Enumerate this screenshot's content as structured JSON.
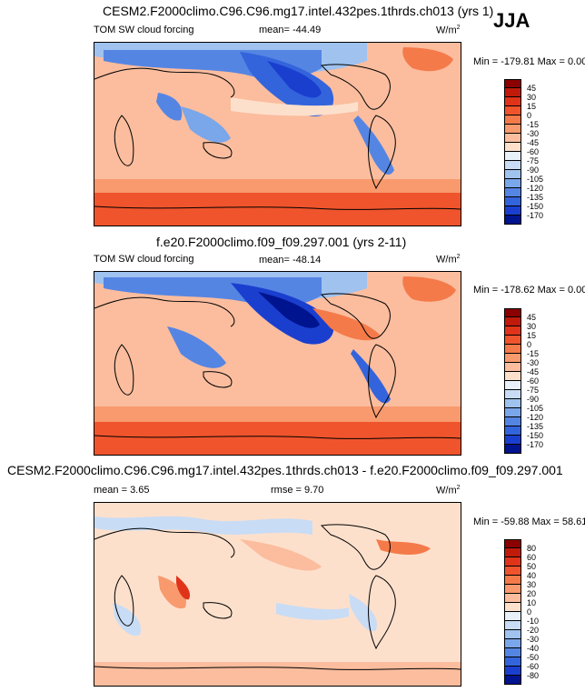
{
  "season": "JJA",
  "panels": [
    {
      "title": "CESM2.F2000climo.C96.C96.mg17.intel.432pes.1thrds.ch013 (yrs 1)",
      "field_label": "TOM SW cloud forcing",
      "mean_label": "mean=",
      "mean_value": "-44.49",
      "rmse_label": "",
      "rmse_value": "",
      "units": "W/m",
      "units_exp": "2",
      "min_max": "Min = -179.81 Max =    0.00",
      "colorbar": {
        "labels": [
          "45",
          "30",
          "15",
          "0",
          "-15",
          "-30",
          "-45",
          "-60",
          "-75",
          "-90",
          "-105",
          "-120",
          "-135",
          "-150",
          "-170"
        ],
        "colors": [
          "#8b0000",
          "#c01a0a",
          "#e0341a",
          "#f0542c",
          "#f57a4a",
          "#f89a6e",
          "#fbbd9e",
          "#fde0cc",
          "#e8f0fa",
          "#c8dcf5",
          "#9fc2ef",
          "#7aa6ea",
          "#5585e3",
          "#3464dc",
          "#1a3fcf",
          "#00148f"
        ]
      }
    },
    {
      "title": "f.e20.F2000climo.f09_f09.297.001 (yrs 2-11)",
      "field_label": "TOM SW cloud forcing",
      "mean_label": "mean=",
      "mean_value": "-48.14",
      "rmse_label": "",
      "rmse_value": "",
      "units": "W/m",
      "units_exp": "2",
      "min_max": "Min = -178.62 Max =    0.00",
      "colorbar": {
        "labels": [
          "45",
          "30",
          "15",
          "0",
          "-15",
          "-30",
          "-45",
          "-60",
          "-75",
          "-90",
          "-105",
          "-120",
          "-135",
          "-150",
          "-170"
        ],
        "colors": [
          "#8b0000",
          "#c01a0a",
          "#e0341a",
          "#f0542c",
          "#f57a4a",
          "#f89a6e",
          "#fbbd9e",
          "#fde0cc",
          "#e8f0fa",
          "#c8dcf5",
          "#9fc2ef",
          "#7aa6ea",
          "#5585e3",
          "#3464dc",
          "#1a3fcf",
          "#00148f"
        ]
      }
    },
    {
      "title": "CESM2.F2000climo.C96.C96.mg17.intel.432pes.1thrds.ch013 - f.e20.F2000climo.f09_f09.297.001",
      "field_label": "",
      "mean_label": "mean =",
      "mean_value": "3.65",
      "rmse_label": "rmse =",
      "rmse_value": "9.70",
      "units": "W/m",
      "units_exp": "2",
      "min_max": "Min = -59.88 Max =  58.61",
      "colorbar": {
        "labels": [
          "80",
          "60",
          "50",
          "40",
          "30",
          "20",
          "10",
          "0",
          "-10",
          "-20",
          "-30",
          "-40",
          "-50",
          "-60",
          "-80"
        ],
        "colors": [
          "#8b0000",
          "#c01a0a",
          "#e0341a",
          "#f0542c",
          "#f57a4a",
          "#f89a6e",
          "#fbbd9e",
          "#fde0cc",
          "#e8f0fa",
          "#c8dcf5",
          "#9fc2ef",
          "#7aa6ea",
          "#5585e3",
          "#3464dc",
          "#1a3fcf",
          "#00148f"
        ]
      }
    }
  ]
}
